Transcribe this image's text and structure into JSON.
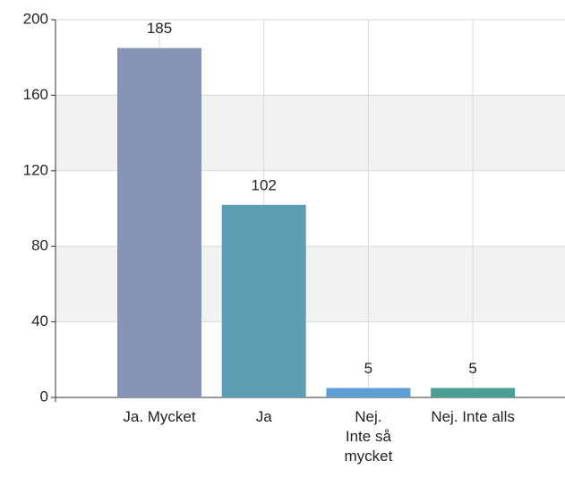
{
  "chart_data": {
    "type": "bar",
    "categories": [
      "Ja. Mycket",
      "Ja",
      "Nej. Inte så mycket",
      "Nej. Inte alls"
    ],
    "values": [
      185,
      102,
      5,
      5
    ],
    "colors": [
      "#8593b5",
      "#5f9db3",
      "#5e9ed6",
      "#4a9e96"
    ],
    "ylim": [
      0,
      200
    ],
    "yticks": [
      0,
      40,
      80,
      120,
      160,
      200
    ],
    "grid": true
  }
}
